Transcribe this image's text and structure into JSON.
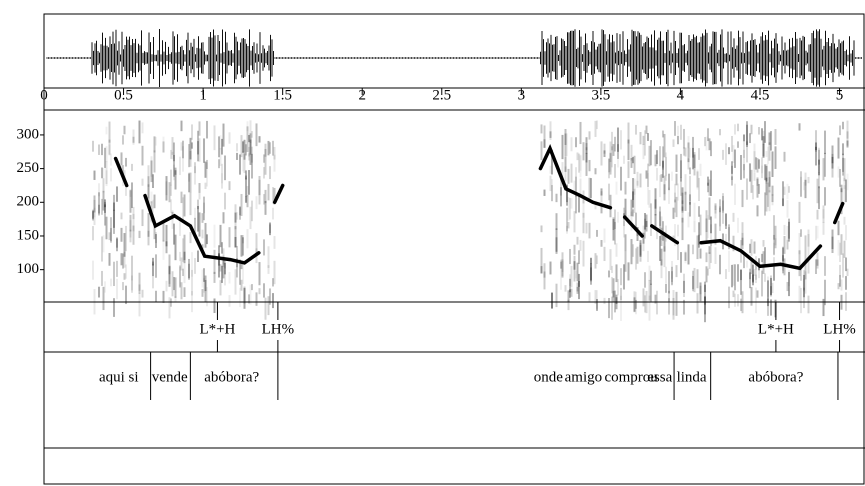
{
  "chart_data": {
    "type": "line",
    "x": [
      0.45,
      0.52,
      null,
      0.635,
      0.7,
      0.82,
      0.92,
      1.01,
      1.17,
      1.26,
      1.35,
      null,
      1.45,
      1.5,
      null,
      3.12,
      3.18,
      3.28,
      3.37,
      3.45,
      3.56,
      null,
      3.65,
      3.76,
      null,
      3.82,
      3.98,
      null,
      4.13,
      4.25,
      4.38,
      4.5,
      4.63,
      4.75,
      4.88,
      null,
      4.97,
      5.02
    ],
    "series": [
      {
        "color": "#000000",
        "values": [
          265,
          225,
          null,
          210,
          165,
          180,
          165,
          120,
          115,
          110,
          125,
          null,
          200,
          225,
          null,
          250,
          280,
          220,
          210,
          200,
          192,
          null,
          178,
          150,
          null,
          165,
          140,
          null,
          140,
          143,
          128,
          105,
          108,
          102,
          135,
          null,
          170,
          198
        ]
      }
    ],
    "xlim": [
      0,
      5.16
    ],
    "xticks": [
      0,
      0.5,
      1,
      1.5,
      2,
      2.5,
      3,
      3.5,
      4,
      4.5,
      5
    ],
    "ylim": [
      52,
      337
    ],
    "yticks": [
      100,
      150,
      200,
      250,
      300
    ],
    "tiers": [
      {
        "points": [
          1.09,
          1.47,
          4.6,
          5.0
        ],
        "labels": [
          "L*+H",
          "LH%",
          "L*+H",
          "LH%"
        ]
      },
      {
        "boundaries": [
          0.67,
          0.92,
          1.47,
          3.96,
          4.19,
          4.99
        ],
        "centers": [
          0.47,
          0.79,
          1.18,
          3.17,
          3.39,
          3.69,
          3.87,
          4.07,
          4.6
        ],
        "labels": [
          "aqui si",
          "vende",
          "abóbora?",
          "onde",
          "amigo",
          "comprou",
          "essa",
          "linda",
          "abóbora?"
        ]
      }
    ]
  }
}
